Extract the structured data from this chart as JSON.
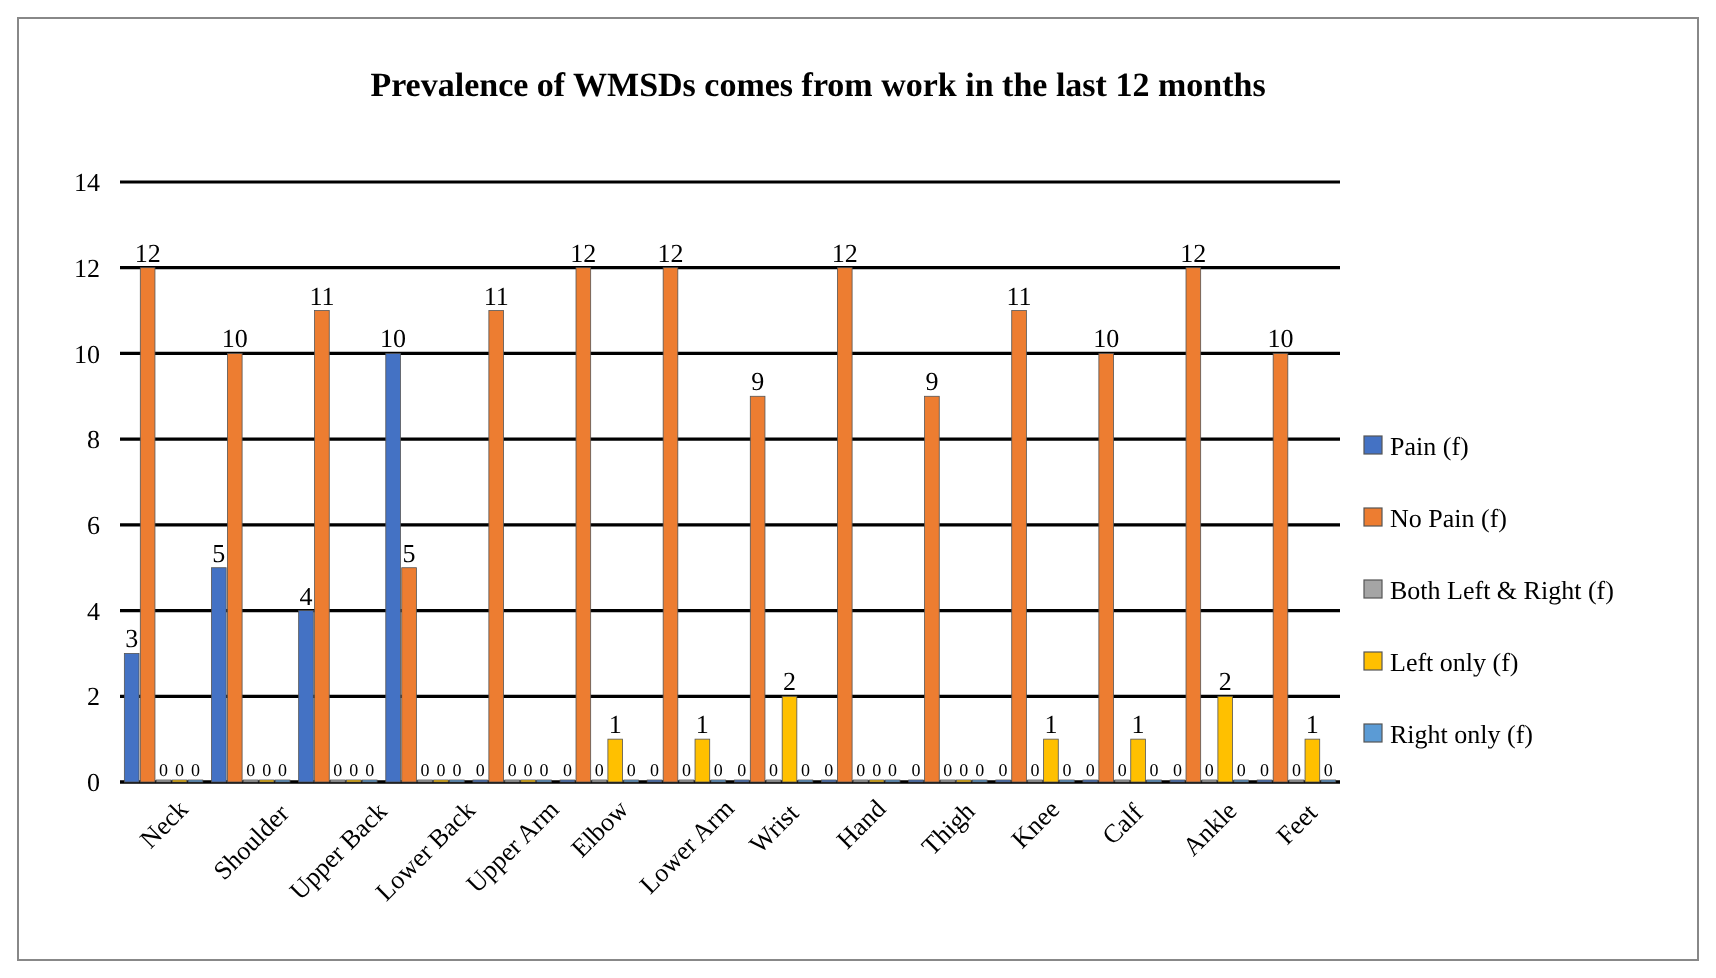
{
  "chart_data": {
    "type": "bar",
    "title": "Prevalence of WMSDs comes from work in the last 12 months",
    "categories": [
      "Neck",
      "Shoulder",
      "Upper Back",
      "Lower Back",
      "Upper Arm",
      "Elbow",
      "Lower Arm",
      "Wrist",
      "Hand",
      "Thigh",
      "Knee",
      "Calf",
      "Ankle",
      "Feet"
    ],
    "series": [
      {
        "name": "Pain (f)",
        "color": "#4472c4",
        "values": [
          3,
          5,
          4,
          10,
          0,
          0,
          0,
          0,
          0,
          0,
          0,
          0,
          0,
          0
        ]
      },
      {
        "name": "No Pain (f)",
        "color": "#ed7d31",
        "values": [
          12,
          10,
          11,
          5,
          11,
          12,
          12,
          9,
          12,
          9,
          11,
          10,
          12,
          10
        ]
      },
      {
        "name": "Both Left & Right (f)",
        "color": "#a5a5a5",
        "values": [
          0,
          0,
          0,
          0,
          0,
          0,
          0,
          0,
          0,
          0,
          0,
          0,
          0,
          0
        ]
      },
      {
        "name": "Left only (f)",
        "color": "#ffc000",
        "values": [
          0,
          0,
          0,
          0,
          0,
          1,
          1,
          2,
          0,
          0,
          1,
          1,
          2,
          1
        ]
      },
      {
        "name": "Right only (f)",
        "color": "#5b9bd5",
        "values": [
          0,
          0,
          0,
          0,
          0,
          0,
          0,
          0,
          0,
          0,
          0,
          0,
          0,
          0
        ]
      }
    ],
    "ylim": [
      0,
      14
    ],
    "yticks": [
      0,
      2,
      4,
      6,
      8,
      10,
      12,
      14
    ],
    "grid": "y",
    "legend": "right",
    "data_labels": true
  }
}
